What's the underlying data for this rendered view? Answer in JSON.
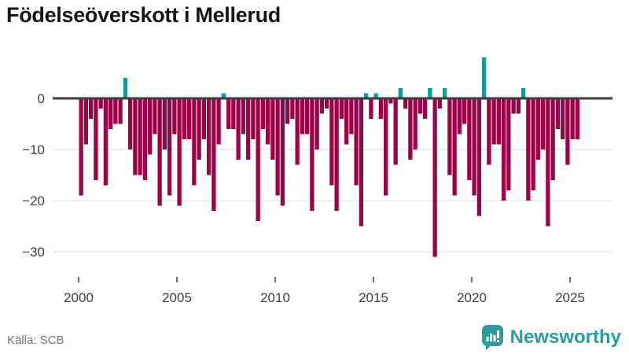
{
  "title": "Födelseöverskott i Mellerud",
  "source": "Källa: SCB",
  "brand": {
    "name": "Newsworthy"
  },
  "colors": {
    "negative_bar": "#9b0349",
    "positive_bar": "#00a1a1",
    "zero_line": "#3d3d3d",
    "gridline": "#e4e4e4",
    "axis_text": "#3f3f3f",
    "title_text": "#151515",
    "source_text": "#767676",
    "brand_teal": "#2d9b9b",
    "background": "#ffffff"
  },
  "chart_data": {
    "type": "bar",
    "title": "Födelseöverskott i Mellerud",
    "x_unit": "quarter",
    "start_year": 2000,
    "start_quarter": 1,
    "end_label": "2025Q2",
    "values": [
      -19,
      -9,
      -4,
      -16,
      -2,
      -17,
      -6,
      -5,
      -5,
      4,
      -10,
      -15,
      -15,
      -16,
      -11,
      -7,
      -21,
      -10,
      -19,
      -7,
      -21,
      -8,
      -8,
      -17,
      -12,
      -8,
      -15,
      -22,
      -9,
      1,
      -6,
      -6,
      -12,
      -7,
      -12,
      -8,
      -24,
      -6,
      -9,
      -12,
      -19,
      -21,
      -5,
      -4,
      -13,
      -7,
      -7,
      -22,
      -10,
      -3,
      -2,
      -17,
      -22,
      -4,
      -9,
      -7,
      -17,
      -25,
      1,
      -4,
      1,
      -4,
      -19,
      -1,
      -13,
      2,
      -2,
      -12,
      -10,
      -3,
      -4,
      2,
      -31,
      -2,
      2,
      -15,
      -19,
      -7,
      -5,
      -16,
      -19,
      -23,
      8,
      -13,
      -9,
      -9,
      -20,
      -18,
      -3,
      -3,
      2,
      -20,
      -18,
      -12,
      -10,
      -25,
      -16,
      -6,
      -8,
      -13,
      -8,
      -8
    ],
    "x_tick_labels": [
      "2000",
      "2005",
      "2010",
      "2015",
      "2020",
      "2025"
    ],
    "x_tick_years": [
      2000,
      2005,
      2010,
      2015,
      2020,
      2025
    ],
    "y_tick_labels": [
      "0",
      "−10",
      "−20",
      "−30"
    ],
    "y_ticks": [
      0,
      -10,
      -20,
      -30
    ],
    "ylim": [
      -33,
      9
    ],
    "grid": "horizontal",
    "legend": "none",
    "bar_color_rule": "negative=maroon, positive=teal"
  }
}
